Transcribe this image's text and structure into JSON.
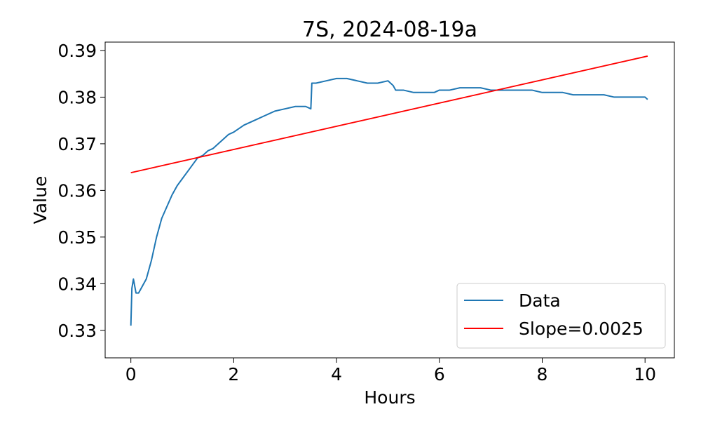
{
  "chart_data": {
    "type": "line",
    "title": "7S, 2024-08-19a",
    "xlabel": "Hours",
    "ylabel": "Value",
    "xlim": [
      -0.5,
      10.57
    ],
    "ylim": [
      0.3241,
      0.3918
    ],
    "x_ticks": [
      0,
      2,
      4,
      6,
      8,
      10
    ],
    "x_tick_labels": [
      "0",
      "2",
      "4",
      "6",
      "8",
      "10"
    ],
    "y_ticks": [
      0.33,
      0.34,
      0.35,
      0.36,
      0.37,
      0.38,
      0.39
    ],
    "y_tick_labels": [
      "0.33",
      "0.34",
      "0.35",
      "0.36",
      "0.37",
      "0.38",
      "0.39"
    ],
    "grid": false,
    "legend_position": "lower-right",
    "series": [
      {
        "name": "Data",
        "color": "#1f77b4",
        "x": [
          0,
          0.02,
          0.05,
          0.1,
          0.15,
          0.2,
          0.3,
          0.4,
          0.5,
          0.6,
          0.7,
          0.8,
          0.9,
          1.0,
          1.1,
          1.2,
          1.3,
          1.4,
          1.5,
          1.6,
          1.7,
          1.8,
          1.9,
          2.0,
          2.2,
          2.4,
          2.6,
          2.8,
          3.0,
          3.2,
          3.4,
          3.5,
          3.52,
          3.6,
          3.8,
          4.0,
          4.2,
          4.4,
          4.6,
          4.8,
          5.0,
          5.1,
          5.15,
          5.3,
          5.5,
          5.7,
          5.9,
          6.0,
          6.2,
          6.4,
          6.6,
          6.8,
          7.0,
          7.2,
          7.4,
          7.6,
          7.8,
          8.0,
          8.2,
          8.4,
          8.6,
          8.8,
          9.0,
          9.2,
          9.4,
          9.6,
          9.8,
          10.0,
          10.05
        ],
        "y": [
          0.331,
          0.339,
          0.341,
          0.338,
          0.338,
          0.339,
          0.341,
          0.345,
          0.35,
          0.354,
          0.3565,
          0.359,
          0.361,
          0.3625,
          0.364,
          0.3655,
          0.367,
          0.3675,
          0.3685,
          0.369,
          0.37,
          0.371,
          0.372,
          0.3725,
          0.374,
          0.375,
          0.376,
          0.377,
          0.3775,
          0.378,
          0.378,
          0.3775,
          0.383,
          0.383,
          0.3835,
          0.384,
          0.384,
          0.3835,
          0.383,
          0.383,
          0.3835,
          0.3825,
          0.3815,
          0.3815,
          0.381,
          0.381,
          0.381,
          0.3815,
          0.3815,
          0.382,
          0.382,
          0.382,
          0.3815,
          0.3815,
          0.3815,
          0.3815,
          0.3815,
          0.381,
          0.381,
          0.381,
          0.3805,
          0.3805,
          0.3805,
          0.3805,
          0.38,
          0.38,
          0.38,
          0.38,
          0.3795
        ]
      },
      {
        "name": "Slope=0.0025",
        "color": "#ff0000",
        "x": [
          0,
          10.05
        ],
        "y": [
          0.3638,
          0.3888
        ]
      }
    ]
  }
}
